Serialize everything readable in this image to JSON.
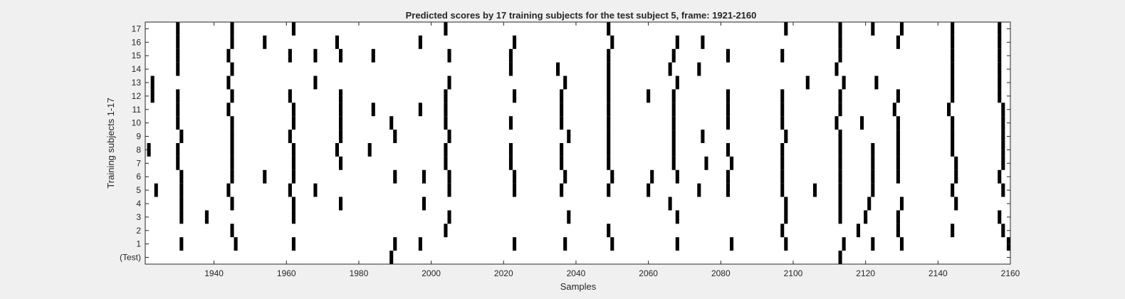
{
  "chart_data": {
    "type": "raster",
    "title": "Predicted scores by 17 training subjects for the test subject 5, frame: 1921-2160",
    "xlabel": "Samples",
    "ylabel": "Training subjects 1-17",
    "xlim": [
      1921,
      2160
    ],
    "xticks": [
      1940,
      1960,
      1980,
      2000,
      2020,
      2040,
      2060,
      2080,
      2100,
      2120,
      2140,
      2160
    ],
    "ytick_labels": [
      "(Test)",
      "1",
      "2",
      "3",
      "4",
      "5",
      "6",
      "7",
      "8",
      "9",
      "10",
      "11",
      "12",
      "13",
      "14",
      "15",
      "16",
      "17"
    ],
    "grid": false,
    "colors": {
      "background": "#f0f0f0",
      "axes": "#ffffff",
      "mark": "#000000"
    },
    "rows": [
      {
        "label": "(Test)",
        "marks": [
          1989,
          2113
        ]
      },
      {
        "label": "1",
        "marks": [
          1931,
          1946,
          1962,
          1990,
          1997,
          2023,
          2037,
          2050,
          2068,
          2083,
          2098,
          2114,
          2122,
          2130,
          2160
        ]
      },
      {
        "label": "2",
        "marks": [
          1945,
          2004,
          2049,
          2097,
          2118,
          2129,
          2144,
          2158
        ]
      },
      {
        "label": "3",
        "marks": [
          1931,
          1938,
          1962,
          2005,
          2038,
          2068,
          2098,
          2113,
          2120,
          2129,
          2157
        ]
      },
      {
        "label": "4",
        "marks": [
          1931,
          1945,
          1962,
          1975,
          1998,
          2066,
          2098,
          2113,
          2121,
          2130,
          2145
        ]
      },
      {
        "label": "5",
        "marks": [
          1924,
          1931,
          1944,
          1961,
          1968,
          2005,
          2023,
          2036,
          2049,
          2060,
          2074,
          2082,
          2097,
          2106,
          2113,
          2122,
          2144,
          2158
        ]
      },
      {
        "label": "6",
        "marks": [
          1931,
          1945,
          1954,
          1962,
          1990,
          1998,
          2005,
          2023,
          2037,
          2050,
          2061,
          2068,
          2082,
          2097,
          2113,
          2122,
          2129,
          2145,
          2157
        ]
      },
      {
        "label": "7",
        "marks": [
          1930,
          1945,
          1962,
          1975,
          2004,
          2022,
          2036,
          2049,
          2067,
          2076,
          2083,
          2097,
          2113,
          2122,
          2129,
          2145,
          2158
        ]
      },
      {
        "label": "8",
        "marks": [
          1922,
          1930,
          1945,
          1962,
          1974,
          1983,
          2004,
          2022,
          2036,
          2049,
          2067,
          2082,
          2097,
          2113,
          2122,
          2129,
          2144,
          2158
        ]
      },
      {
        "label": "9",
        "marks": [
          1931,
          1945,
          1961,
          1975,
          1990,
          2005,
          2038,
          2049,
          2067,
          2075,
          2098,
          2113,
          2129,
          2144,
          2158
        ]
      },
      {
        "label": "10",
        "marks": [
          1930,
          1945,
          1962,
          1975,
          1989,
          2004,
          2022,
          2036,
          2049,
          2067,
          2082,
          2097,
          2112,
          2119,
          2129,
          2144,
          2158
        ]
      },
      {
        "label": "11",
        "marks": [
          1930,
          1944,
          1962,
          1975,
          1984,
          1997,
          2004,
          2036,
          2049,
          2067,
          2082,
          2097,
          2113,
          2128,
          2143,
          2158
        ]
      },
      {
        "label": "12",
        "marks": [
          1923,
          1930,
          1945,
          1961,
          1975,
          2004,
          2023,
          2036,
          2049,
          2060,
          2067,
          2082,
          2097,
          2113,
          2129,
          2144,
          2157
        ]
      },
      {
        "label": "13",
        "marks": [
          1923,
          1944,
          1968,
          2005,
          2037,
          2049,
          2068,
          2104,
          2114,
          2123,
          2144,
          2157
        ]
      },
      {
        "label": "14",
        "marks": [
          1930,
          1945,
          2022,
          2035,
          2049,
          2066,
          2074,
          2112,
          2144,
          2157
        ]
      },
      {
        "label": "15",
        "marks": [
          1930,
          1944,
          1961,
          1968,
          1975,
          1984,
          2005,
          2022,
          2049,
          2067,
          2082,
          2097,
          2113,
          2144,
          2157
        ]
      },
      {
        "label": "16",
        "marks": [
          1930,
          1945,
          1954,
          1974,
          1997,
          2023,
          2050,
          2068,
          2075,
          2113,
          2129,
          2144,
          2157
        ]
      },
      {
        "label": "17",
        "marks": [
          1930,
          1945,
          1962,
          2004,
          2049,
          2098,
          2113,
          2122,
          2130,
          2144,
          2157
        ]
      }
    ]
  }
}
